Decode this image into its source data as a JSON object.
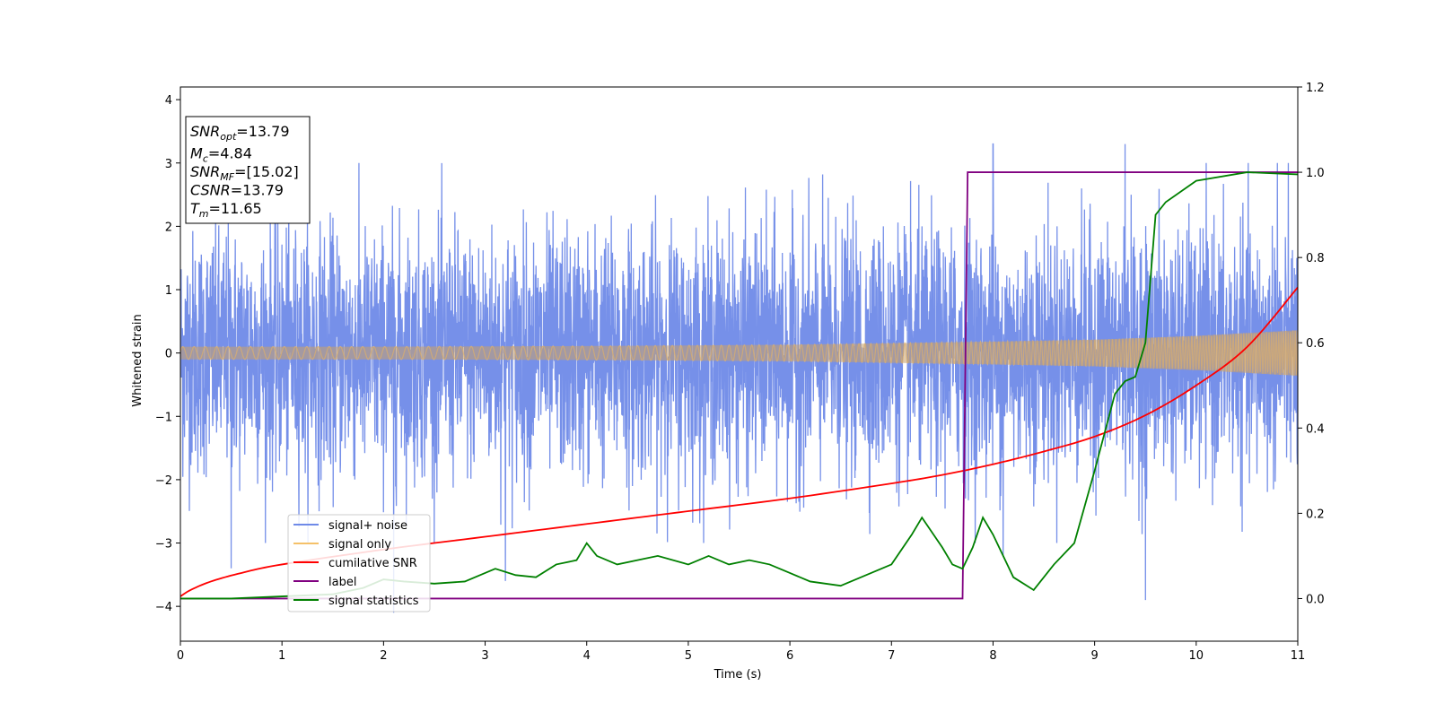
{
  "chart_data": {
    "type": "line",
    "xlabel": "Time (s)",
    "ylabel": "Whitened strain",
    "xlim": [
      0,
      11
    ],
    "ylim_left": [
      -4.55,
      4.2
    ],
    "ylim_right": [
      -0.1,
      1.2
    ],
    "x_ticks": [
      0,
      1,
      2,
      3,
      4,
      5,
      6,
      7,
      8,
      9,
      10,
      11
    ],
    "y_left_ticks": [
      -4,
      -3,
      -2,
      -1,
      0,
      1,
      2,
      3,
      4
    ],
    "y_left_tick_labels": [
      "−4",
      "−3",
      "−2",
      "−1",
      "0",
      "1",
      "2",
      "3",
      "4"
    ],
    "y_right_ticks": [
      0.0,
      0.2,
      0.4,
      0.6,
      0.8,
      1.0,
      1.2
    ],
    "y_right_tick_labels": [
      "0.0",
      "0.2",
      "0.4",
      "0.6",
      "0.8",
      "1.0",
      "1.2"
    ],
    "legend_placement": "lower-left",
    "colors": {
      "signal_noise": "#6f8ae8",
      "signal_only": "#f5c169",
      "cumulative_snr": "#ff0000",
      "label": "#800080",
      "signal_statistics": "#008000"
    },
    "annotation": {
      "lines": [
        {
          "sym": "SNR",
          "sub": "opt",
          "val": "=13.79"
        },
        {
          "sym": "M",
          "sub": "c",
          "val": "=4.84"
        },
        {
          "sym": "SNR",
          "sub": "MF",
          "val": "=[15.02]"
        },
        {
          "sym": "CSNR",
          "sub": "",
          "val": "=13.79"
        },
        {
          "sym": "T",
          "sub": "m",
          "val": "=11.65"
        }
      ]
    },
    "series": [
      {
        "name": "signal+ noise",
        "axis": "left",
        "kind": "noise",
        "std": 0.95,
        "max_excursions": [
          {
            "x": 0.5,
            "y": -3.4
          },
          {
            "x": 2.1,
            "y": -4.1
          },
          {
            "x": 3.2,
            "y": -3.6
          },
          {
            "x": 8.0,
            "y": 3.3
          },
          {
            "x": 8.1,
            "y": -3.2
          },
          {
            "x": 9.3,
            "y": 3.3
          },
          {
            "x": 9.5,
            "y": -3.9
          },
          {
            "x": 10.8,
            "y": 3.0
          }
        ]
      },
      {
        "name": "signal only",
        "axis": "left",
        "kind": "chirp_envelope",
        "amplitude_points": [
          [
            0,
            0.1
          ],
          [
            2,
            0.1
          ],
          [
            4,
            0.11
          ],
          [
            6,
            0.13
          ],
          [
            8,
            0.18
          ],
          [
            9,
            0.21
          ],
          [
            10,
            0.27
          ],
          [
            11,
            0.36
          ]
        ]
      },
      {
        "name": "cumilative SNR",
        "axis": "right",
        "x": [
          0,
          0.1,
          0.3,
          0.6,
          1,
          2,
          3,
          4,
          5,
          6,
          7,
          7.5,
          8,
          8.5,
          9,
          9.5,
          10,
          10.5,
          11
        ],
        "y": [
          0.005,
          0.02,
          0.04,
          0.06,
          0.08,
          0.115,
          0.145,
          0.175,
          0.205,
          0.235,
          0.27,
          0.29,
          0.315,
          0.345,
          0.38,
          0.43,
          0.5,
          0.59,
          0.73
        ]
      },
      {
        "name": "label",
        "axis": "right",
        "x": [
          0,
          7.7,
          7.75,
          11
        ],
        "y": [
          0,
          0,
          1,
          1
        ]
      },
      {
        "name": "signal statistics",
        "axis": "right",
        "x": [
          0,
          0.5,
          1,
          1.5,
          1.8,
          2.0,
          2.2,
          2.5,
          2.8,
          3.0,
          3.1,
          3.3,
          3.5,
          3.7,
          3.9,
          4.0,
          4.1,
          4.3,
          4.5,
          4.7,
          5.0,
          5.2,
          5.4,
          5.6,
          5.8,
          6.0,
          6.2,
          6.5,
          6.8,
          7.0,
          7.2,
          7.3,
          7.5,
          7.6,
          7.7,
          7.8,
          7.9,
          8.0,
          8.2,
          8.4,
          8.6,
          8.8,
          9.0,
          9.2,
          9.3,
          9.4,
          9.5,
          9.6,
          9.7,
          10.0,
          10.5,
          11.0
        ],
        "y": [
          0.0,
          0.0,
          0.005,
          0.01,
          0.025,
          0.045,
          0.04,
          0.035,
          0.04,
          0.06,
          0.07,
          0.055,
          0.05,
          0.08,
          0.09,
          0.13,
          0.1,
          0.08,
          0.09,
          0.1,
          0.08,
          0.1,
          0.08,
          0.09,
          0.08,
          0.06,
          0.04,
          0.03,
          0.06,
          0.08,
          0.15,
          0.19,
          0.12,
          0.08,
          0.07,
          0.12,
          0.19,
          0.15,
          0.05,
          0.02,
          0.08,
          0.13,
          0.3,
          0.48,
          0.51,
          0.52,
          0.6,
          0.9,
          0.93,
          0.98,
          1.0,
          0.995
        ]
      }
    ]
  }
}
